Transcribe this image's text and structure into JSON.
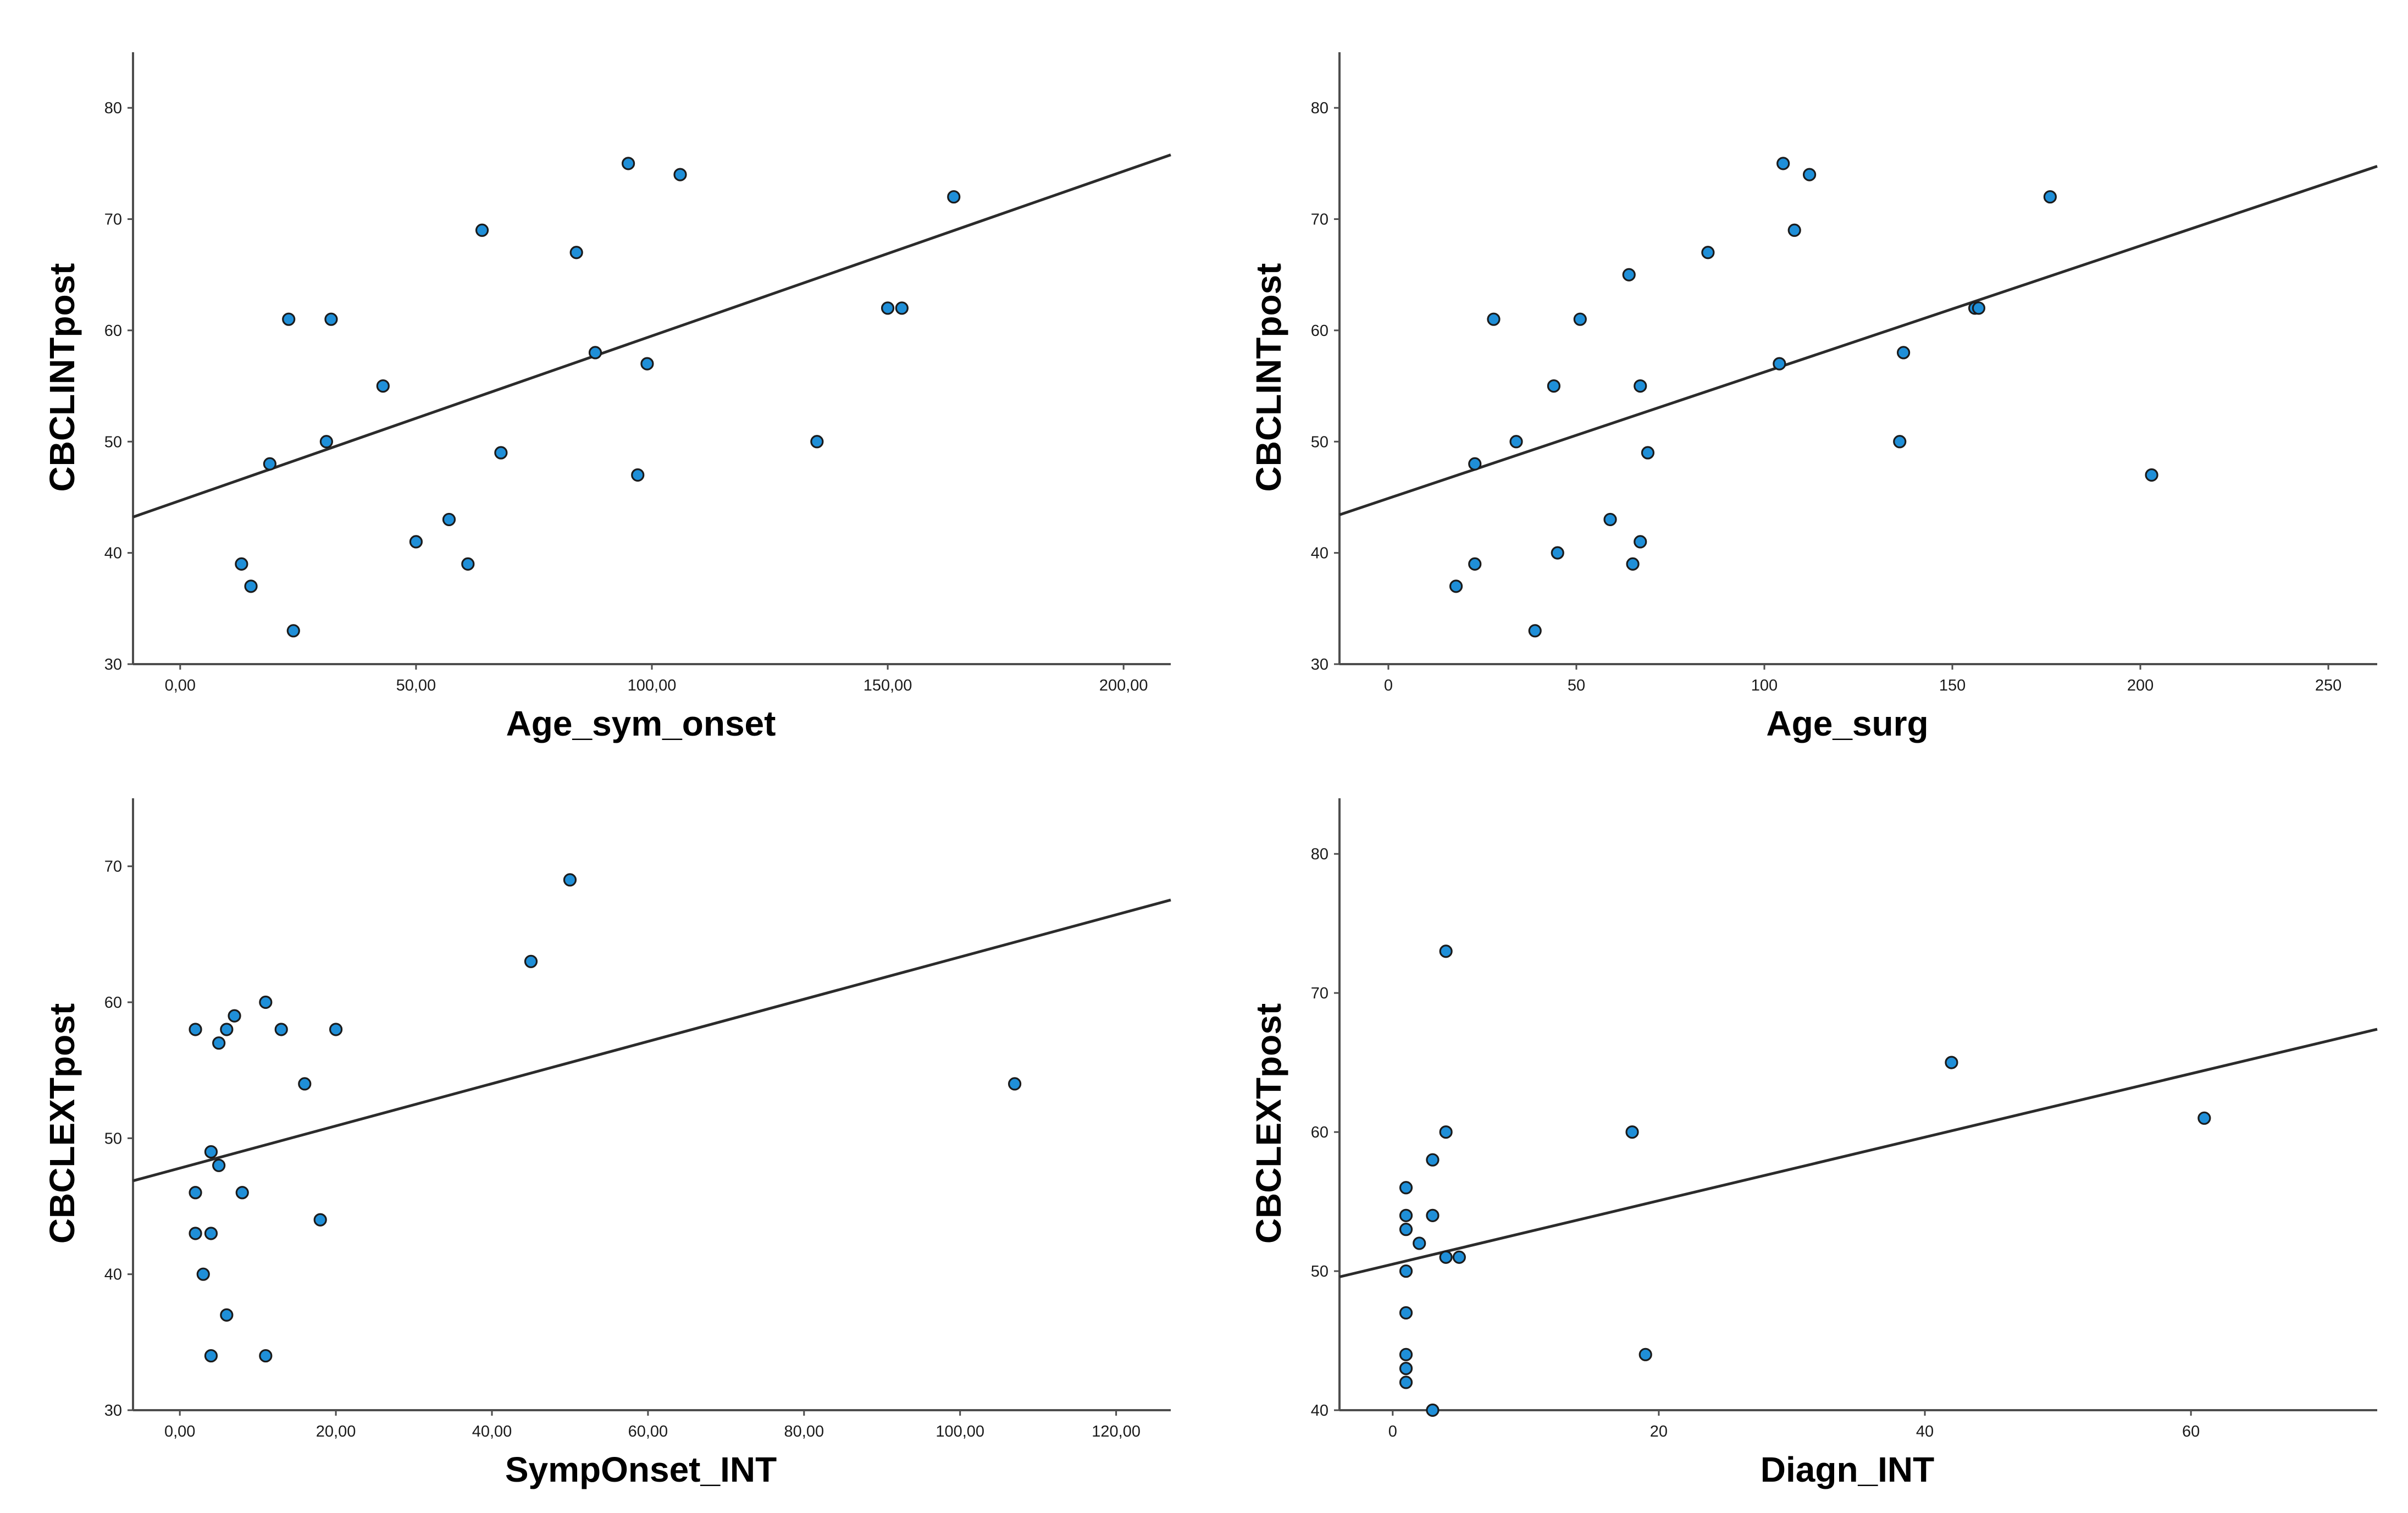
{
  "figure": {
    "marker_color": "#1f8fd8",
    "line_color": "#2b2b2b"
  },
  "chart_data": [
    {
      "type": "scatter",
      "title": "",
      "xlabel": "Age_sym_onset",
      "ylabel": "CBCLINTpost",
      "xlim": [
        -10,
        210
      ],
      "ylim": [
        30,
        85
      ],
      "xticks": [
        0,
        50,
        100,
        150,
        200
      ],
      "xtick_labels": [
        "0,00",
        "50,00",
        "100,00",
        "150,00",
        "200,00"
      ],
      "yticks": [
        30,
        40,
        50,
        60,
        70,
        80
      ],
      "ytick_labels": [
        "30",
        "40",
        "50",
        "60",
        "70",
        "80"
      ],
      "grid": false,
      "points": [
        [
          13,
          39
        ],
        [
          15,
          37
        ],
        [
          19,
          48
        ],
        [
          23,
          61
        ],
        [
          24,
          33
        ],
        [
          31,
          50
        ],
        [
          32,
          61
        ],
        [
          43,
          55
        ],
        [
          50,
          41
        ],
        [
          57,
          43
        ],
        [
          61,
          39
        ],
        [
          64,
          69
        ],
        [
          68,
          49
        ],
        [
          84,
          67
        ],
        [
          88,
          58
        ],
        [
          95,
          75
        ],
        [
          97,
          47
        ],
        [
          99,
          57
        ],
        [
          106,
          74
        ],
        [
          135,
          50
        ],
        [
          150,
          62
        ],
        [
          153,
          62
        ],
        [
          164,
          72
        ]
      ],
      "fit_line": {
        "intercept": 44.7,
        "slope": 0.148
      }
    },
    {
      "type": "scatter",
      "title": "",
      "xlabel": "Age_surg",
      "ylabel": "CBCLINTpost",
      "xlim": [
        -13,
        263
      ],
      "ylim": [
        30,
        85
      ],
      "xticks": [
        0,
        50,
        100,
        150,
        200,
        250
      ],
      "xtick_labels": [
        "0",
        "50",
        "100",
        "150",
        "200",
        "250"
      ],
      "yticks": [
        30,
        40,
        50,
        60,
        70,
        80
      ],
      "ytick_labels": [
        "30",
        "40",
        "50",
        "60",
        "70",
        "80"
      ],
      "grid": false,
      "points": [
        [
          18,
          37
        ],
        [
          23,
          48
        ],
        [
          23,
          39
        ],
        [
          28,
          61
        ],
        [
          34,
          50
        ],
        [
          39,
          33
        ],
        [
          44,
          55
        ],
        [
          45,
          40
        ],
        [
          51,
          61
        ],
        [
          59,
          43
        ],
        [
          64,
          65
        ],
        [
          65,
          39
        ],
        [
          67,
          41
        ],
        [
          67,
          55
        ],
        [
          69,
          49
        ],
        [
          85,
          67
        ],
        [
          104,
          57
        ],
        [
          105,
          75
        ],
        [
          108,
          69
        ],
        [
          112,
          74
        ],
        [
          136,
          50
        ],
        [
          137,
          58
        ],
        [
          156,
          62
        ],
        [
          157,
          62
        ],
        [
          176,
          72
        ],
        [
          203,
          47
        ]
      ],
      "fit_line": {
        "intercept": 44.9,
        "slope": 0.1135
      }
    },
    {
      "type": "scatter",
      "title": "",
      "xlabel": "SympOnset_INT",
      "ylabel": "CBCLEXTpost",
      "xlim": [
        -6,
        127
      ],
      "ylim": [
        30,
        75
      ],
      "xticks": [
        0,
        20,
        40,
        60,
        80,
        100,
        120
      ],
      "xtick_labels": [
        "0,00",
        "20,00",
        "40,00",
        "60,00",
        "80,00",
        "100,00",
        "120,00"
      ],
      "yticks": [
        30,
        40,
        50,
        60,
        70
      ],
      "ytick_labels": [
        "30",
        "40",
        "50",
        "60",
        "70"
      ],
      "grid": false,
      "points": [
        [
          2,
          58
        ],
        [
          2,
          46
        ],
        [
          2,
          43
        ],
        [
          3,
          40
        ],
        [
          4,
          49
        ],
        [
          4,
          43
        ],
        [
          4,
          34
        ],
        [
          5,
          57
        ],
        [
          5,
          48
        ],
        [
          6,
          58
        ],
        [
          6,
          37
        ],
        [
          7,
          59
        ],
        [
          8,
          46
        ],
        [
          11,
          60
        ],
        [
          11,
          34
        ],
        [
          13,
          58
        ],
        [
          16,
          54
        ],
        [
          18,
          44
        ],
        [
          20,
          58
        ],
        [
          45,
          63
        ],
        [
          50,
          69
        ],
        [
          107,
          54
        ]
      ],
      "fit_line": {
        "intercept": 47.8,
        "slope": 0.1553
      }
    },
    {
      "type": "scatter",
      "title": "",
      "xlabel": "Diagn_INT",
      "ylabel": "CBCLEXTpost",
      "xlim": [
        -4,
        74
      ],
      "ylim": [
        40,
        84
      ],
      "xticks": [
        0,
        20,
        40,
        60
      ],
      "xtick_labels": [
        "0",
        "20",
        "40",
        "60"
      ],
      "yticks": [
        40,
        50,
        60,
        70,
        80
      ],
      "ytick_labels": [
        "40",
        "50",
        "60",
        "70",
        "80"
      ],
      "grid": false,
      "points": [
        [
          1,
          56
        ],
        [
          1,
          54
        ],
        [
          1,
          53
        ],
        [
          1,
          50
        ],
        [
          1,
          47
        ],
        [
          1,
          44
        ],
        [
          1,
          43
        ],
        [
          1,
          42
        ],
        [
          2,
          52
        ],
        [
          3,
          58
        ],
        [
          3,
          54
        ],
        [
          3,
          40
        ],
        [
          4,
          73
        ],
        [
          4,
          60
        ],
        [
          4,
          51
        ],
        [
          5,
          51
        ],
        [
          18,
          60
        ],
        [
          19,
          44
        ],
        [
          42,
          65
        ],
        [
          61,
          61
        ]
      ],
      "fit_line": {
        "intercept": 50.5,
        "slope": 0.2283
      }
    }
  ]
}
